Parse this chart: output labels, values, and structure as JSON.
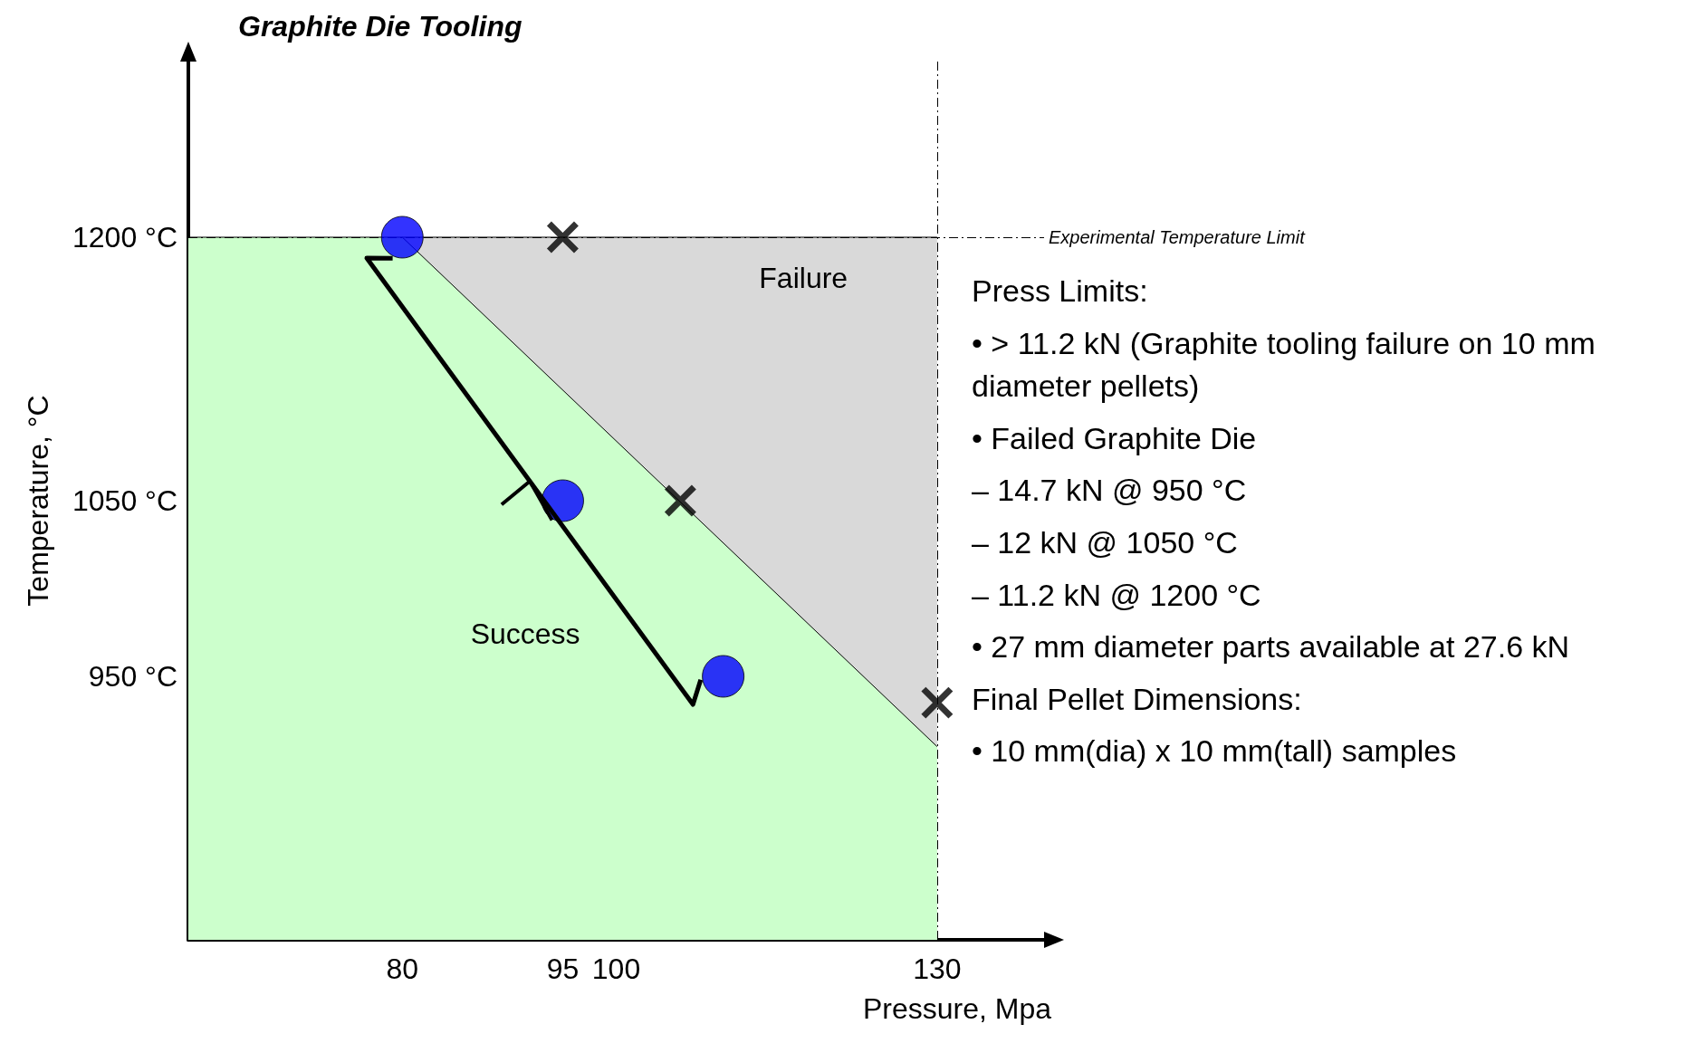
{
  "chart_data": {
    "type": "scatter",
    "title": "Graphite Die Tooling",
    "xlabel": "Pressure, Mpa",
    "ylabel": "Temperature, °C",
    "xlim": [
      60,
      140
    ],
    "xticks": [
      80,
      95,
      100,
      130
    ],
    "ylim": [
      800,
      1300
    ],
    "yticks": [
      {
        "value": 950,
        "label": "950 °C"
      },
      {
        "value": 1050,
        "label": "1050 °C"
      },
      {
        "value": 1200,
        "label": "1200 °C"
      }
    ],
    "grid": false,
    "series": [
      {
        "type": "area",
        "name": "Failure",
        "color": "#d9d9d9",
        "x": [
          80,
          130
        ],
        "values": [
          1200,
          1200
        ]
      },
      {
        "type": "area",
        "name": "Success",
        "color": "#ccffcc",
        "x": [
          60,
          80,
          130
        ],
        "values": [
          1200,
          1200,
          910
        ]
      },
      {
        "marker": "circle",
        "color": "#0000ff",
        "x": [
          80,
          95,
          110
        ],
        "values": [
          1200,
          1050,
          950
        ]
      },
      {
        "marker": "cross",
        "color": "#000000",
        "x": [
          95,
          106,
          130
        ],
        "values": [
          1200,
          1050,
          935
        ]
      }
    ],
    "ref_lines": [
      {
        "axis": "y",
        "value": 1200,
        "label": "Experimental Temperature Limit",
        "line_style": "dashed"
      },
      {
        "axis": "x",
        "value": 130,
        "line_style": "dashed"
      }
    ],
    "annotations": [
      "Press Limits:",
      "• > 11.2 kN (Graphite tooling failure on 10 mm diameter pellets)",
      "• Failed Graphite Die",
      "– 14.7 kN @ 950 °C",
      "– 12 kN @ 1050 °C",
      "– 11.2 kN @ 1200 °C",
      "• 27 mm diameter parts available at 27.6 kN",
      "Final Pellet Dimensions:",
      "• 10 mm(dia) x 10 mm(tall) samples"
    ]
  }
}
